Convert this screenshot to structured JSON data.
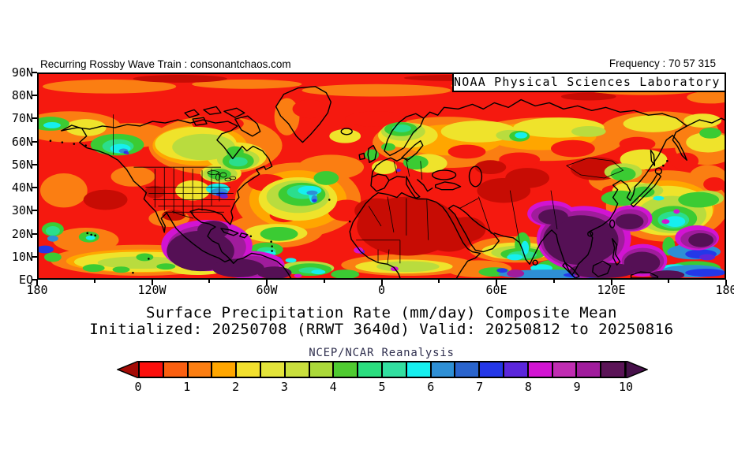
{
  "header": {
    "left": "Recurring Rossby Wave Train : consonantchaos.com",
    "right": "Frequency : 70 57 315"
  },
  "map": {
    "overlay_label": "NOAA Physical Sciences Laboratory"
  },
  "axes": {
    "y_labels": [
      "90N",
      "80N",
      "70N",
      "60N",
      "50N",
      "40N",
      "30N",
      "20N",
      "10N",
      "EQ"
    ],
    "x_labels": [
      "180",
      "120W",
      "60W",
      "0",
      "60E",
      "120E",
      "180"
    ]
  },
  "caption": {
    "title": "Surface Precipitation Rate (mm/day) Composite Mean",
    "subtitle": "Initialized: 20250708 (RRWT 3640d) Valid: 20250812 to 20250816",
    "dataset": "NCEP/NCAR Reanalysis"
  },
  "colorbar": {
    "units": "mm/day",
    "tick_labels": [
      "0",
      "1",
      "2",
      "3",
      "4",
      "5",
      "6",
      "7",
      "8",
      "9",
      "10"
    ],
    "cell_colors": [
      "#FB0F0C",
      "#FA5F10",
      "#FB7E12",
      "#FFA600",
      "#F2E02E",
      "#E3E43A",
      "#C9DF3D",
      "#ABD93A",
      "#4FCB31",
      "#2BDE7F",
      "#32DFA0",
      "#16EFEF",
      "#2E8FD5",
      "#2A64CD",
      "#2437E8",
      "#5B26DB",
      "#D214D2",
      "#C02DB2",
      "#A01C9C",
      "#5B1457"
    ],
    "below_min_color": "#A40B06",
    "above_max_color": "#46104A"
  },
  "chart_data": {
    "type": "heatmap",
    "subtype": "filled-contour-map",
    "projection": "equirectangular",
    "lon_range": [
      -180,
      180
    ],
    "lat_range": [
      0,
      90
    ],
    "variable": "Surface Precipitation Rate",
    "units": "mm/day",
    "statistic": "Composite Mean",
    "dataset": "NCEP/NCAR Reanalysis",
    "initialized": "20250708",
    "composite_id": "RRWT 3640d",
    "valid_from": "20250812",
    "valid_to": "20250816",
    "frequency_numbers": [
      70,
      57,
      315
    ],
    "color_scale": {
      "min": 0,
      "max": 10,
      "step": 0.5,
      "arrow_below": true,
      "arrow_above": true
    },
    "x_tick_interval_deg": 60,
    "x_minor_tick_interval_deg": 30,
    "y_tick_interval_deg": 10,
    "features": [
      {
        "region": "Gulf of Mexico, southern Mexico and Central America",
        "precip_mm_day": "9.5 to >10"
      },
      {
        "region": "Northeast India, Bay of Bengal and Southeast Asia monsoon region",
        "precip_mm_day": "9.5 to >10"
      },
      {
        "region": "Western tropical Pacific near Philippines and east of map edge",
        "precip_mm_day": "8-10+"
      },
      {
        "region": "Sahara, Arabian Peninsula, Iran and Central Asia",
        "precip_mm_day": "0-0.5 (driest)"
      },
      {
        "region": "Subtropical eastern Pacific and subtropical Atlantic",
        "precip_mm_day": "0-1"
      },
      {
        "region": "Canada interior and Scandinavia",
        "precip_mm_day": "2-5"
      },
      {
        "region": "Southeastern United States",
        "precip_mm_day": "5-8"
      },
      {
        "region": "Gulf of Alaska coastal arc",
        "precip_mm_day": "4-8"
      },
      {
        "region": "Mid-latitude North Atlantic storm track",
        "precip_mm_day": "3-6 with cyan/blue cores"
      },
      {
        "region": "Equatorial Indian Ocean and far-eastern Pacific equator",
        "precip_mm_day": "5-9"
      },
      {
        "region": "High Arctic band 80-90N",
        "precip_mm_day": "0-1.5"
      }
    ]
  }
}
